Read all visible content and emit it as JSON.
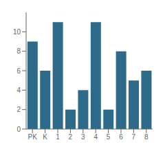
{
  "chart_data": {
    "type": "bar",
    "categories": [
      "PK",
      "K",
      "1",
      "2",
      "3",
      "4",
      "5",
      "6",
      "7",
      "8"
    ],
    "values": [
      9,
      6,
      11,
      2,
      4,
      11,
      2,
      8,
      5,
      6
    ],
    "color": "#2e6b8a",
    "ylim": [
      0,
      12
    ],
    "yticks": [
      0,
      2,
      4,
      6,
      8,
      10
    ],
    "grid": false
  }
}
